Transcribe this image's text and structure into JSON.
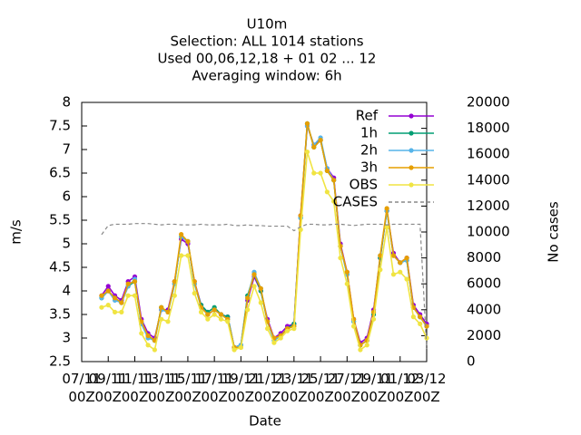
{
  "chart_data": {
    "type": "line",
    "title": "U10m",
    "subtitle": [
      "Selection: ALL    1014 stations",
      "Used  00,06,12,18 + 01 02 ... 12",
      "Averaging window:  6h"
    ],
    "x_label": "Date",
    "y_label": "m/s",
    "y2_label": "No cases",
    "x": [
      8.5,
      9,
      9.5,
      10,
      10.5,
      11,
      11.5,
      12,
      12.5,
      13,
      13.5,
      14,
      14.5,
      15,
      15.5,
      16,
      16.5,
      17,
      17.5,
      18,
      18.5,
      19,
      19.5,
      20,
      20.5,
      21,
      21.5,
      22,
      22.5,
      23,
      23.5,
      24,
      24.5,
      25,
      25.5,
      26,
      26.5,
      27,
      27.5,
      28,
      28.5,
      29,
      29.5,
      30,
      30.5,
      31,
      31.5,
      32,
      32.5,
      33
    ],
    "xlim": [
      7,
      33
    ],
    "xticks": [
      {
        "value": 7,
        "label": "07/11\n00Z"
      },
      {
        "value": 9,
        "label": "09/11\n00Z"
      },
      {
        "value": 11,
        "label": "11/11\n00Z"
      },
      {
        "value": 13,
        "label": "13/11\n00Z"
      },
      {
        "value": 15,
        "label": "15/11\n00Z"
      },
      {
        "value": 17,
        "label": "17/11\n00Z"
      },
      {
        "value": 19,
        "label": "19/11\n00Z"
      },
      {
        "value": 21,
        "label": "21/11\n00Z"
      },
      {
        "value": 23,
        "label": "23/11\n00Z"
      },
      {
        "value": 25,
        "label": "25/11\n00Z"
      },
      {
        "value": 27,
        "label": "27/11\n00Z"
      },
      {
        "value": 29,
        "label": "29/11\n00Z"
      },
      {
        "value": 31,
        "label": "01/12\n00Z"
      },
      {
        "value": 33,
        "label": "03/12\n00Z"
      }
    ],
    "ylim": [
      2.5,
      8
    ],
    "yticks": [
      2.5,
      3,
      3.5,
      4,
      4.5,
      5,
      5.5,
      6,
      6.5,
      7,
      7.5,
      8
    ],
    "y2lim": [
      0,
      20000
    ],
    "y2ticks": [
      0,
      2000,
      4000,
      6000,
      8000,
      10000,
      12000,
      14000,
      16000,
      18000,
      20000
    ],
    "legend": "top right",
    "series": [
      {
        "name": "Ref",
        "color": "#9400d3",
        "values": [
          3.9,
          4.1,
          3.9,
          3.8,
          4.2,
          4.3,
          3.4,
          3.1,
          3.0,
          3.6,
          3.6,
          4.2,
          5.1,
          5.0,
          4.2,
          3.7,
          3.5,
          3.6,
          3.5,
          3.45,
          2.8,
          2.85,
          3.8,
          4.3,
          4.0,
          3.4,
          3.0,
          3.1,
          3.25,
          3.3,
          5.6,
          7.5,
          7.1,
          7.2,
          6.6,
          6.4,
          5.0,
          4.4,
          3.4,
          2.9,
          3.0,
          3.6,
          4.7,
          5.7,
          4.8,
          4.6,
          4.7,
          3.7,
          3.5,
          3.3
        ]
      },
      {
        "name": "1h",
        "color": "#009e73",
        "values": [
          3.85,
          4.0,
          3.85,
          3.75,
          4.1,
          4.2,
          3.3,
          3.05,
          2.95,
          3.65,
          3.55,
          4.15,
          5.15,
          5.05,
          4.15,
          3.7,
          3.55,
          3.65,
          3.5,
          3.45,
          2.8,
          2.85,
          3.9,
          4.35,
          4.0,
          3.35,
          2.95,
          3.05,
          3.2,
          3.3,
          5.55,
          7.55,
          7.05,
          7.2,
          6.55,
          6.35,
          4.95,
          4.35,
          3.35,
          2.85,
          2.95,
          3.5,
          4.7,
          5.7,
          4.75,
          4.6,
          4.65,
          3.65,
          3.45,
          3.25
        ]
      },
      {
        "name": "2h",
        "color": "#56b4e9",
        "values": [
          3.85,
          4.0,
          3.8,
          3.75,
          4.1,
          4.25,
          3.3,
          3.0,
          2.95,
          3.6,
          3.55,
          4.15,
          5.15,
          5.05,
          4.15,
          3.65,
          3.5,
          3.6,
          3.5,
          3.4,
          2.8,
          2.85,
          3.85,
          4.4,
          4.05,
          3.35,
          2.95,
          3.05,
          3.2,
          3.25,
          5.55,
          7.5,
          7.1,
          7.25,
          6.6,
          6.35,
          4.95,
          4.35,
          3.35,
          2.85,
          2.95,
          3.55,
          4.75,
          5.7,
          4.75,
          4.6,
          4.65,
          3.65,
          3.45,
          3.25
        ]
      },
      {
        "name": "3h",
        "color": "#e69f00",
        "values": [
          3.9,
          4.0,
          3.85,
          3.75,
          4.15,
          4.2,
          3.35,
          3.05,
          2.95,
          3.65,
          3.55,
          4.2,
          5.2,
          5.05,
          4.2,
          3.65,
          3.5,
          3.6,
          3.5,
          3.4,
          2.8,
          2.8,
          3.85,
          4.35,
          4.05,
          3.35,
          3.0,
          3.05,
          3.2,
          3.25,
          5.6,
          7.55,
          7.05,
          7.2,
          6.55,
          6.35,
          4.95,
          4.4,
          3.4,
          2.85,
          2.95,
          3.55,
          4.75,
          5.75,
          4.75,
          4.6,
          4.7,
          3.65,
          3.45,
          3.25
        ]
      },
      {
        "name": "OBS",
        "color": "#f0e442",
        "values": [
          3.65,
          3.7,
          3.55,
          3.55,
          3.9,
          3.9,
          3.1,
          2.85,
          2.75,
          3.4,
          3.35,
          3.9,
          4.75,
          4.75,
          3.95,
          3.55,
          3.4,
          3.5,
          3.4,
          3.35,
          2.75,
          2.8,
          3.6,
          4.1,
          3.75,
          3.2,
          2.9,
          3.0,
          3.15,
          3.2,
          5.3,
          6.95,
          6.5,
          6.5,
          6.1,
          5.9,
          4.7,
          4.15,
          3.25,
          2.75,
          2.85,
          3.4,
          4.45,
          5.35,
          4.35,
          4.4,
          4.25,
          3.45,
          3.3,
          3.0
        ]
      },
      {
        "name": "CASES",
        "color": "#888888",
        "axis": "y2",
        "dashed": true,
        "values": [
          9800,
          10500,
          10600,
          10600,
          10600,
          10650,
          10650,
          10650,
          10600,
          10550,
          10600,
          10600,
          10550,
          10550,
          10550,
          10600,
          10550,
          10550,
          10550,
          10600,
          10500,
          10500,
          10550,
          10500,
          10500,
          10450,
          10450,
          10450,
          10450,
          10100,
          10400,
          10600,
          10600,
          10550,
          10550,
          10600,
          10600,
          10550,
          10500,
          10550,
          10600,
          10600,
          10600,
          10550,
          10600,
          10600,
          10600,
          10600,
          10600,
          1000
        ]
      }
    ]
  }
}
